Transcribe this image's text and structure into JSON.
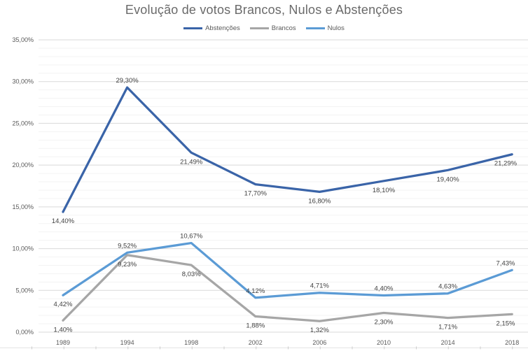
{
  "title": "Evolução de votos Brancos, Nulos e Abstenções",
  "legend": [
    {
      "label": "Abstenções",
      "color": "#3a64a8"
    },
    {
      "label": "Brancos",
      "color": "#a6a6a6"
    },
    {
      "label": "Nulos",
      "color": "#5b9bd5"
    }
  ],
  "colors": {
    "abstencoes": "#3a64a8",
    "brancos": "#a6a6a6",
    "nulos": "#5b9bd5",
    "major_gridline": "#d9d9d9",
    "minor_gridline": "#f3f3f3",
    "axis_text": "#595959",
    "data_label_text": "#404040",
    "title_text": "#6a6a6a"
  },
  "chart_data": {
    "type": "line",
    "title": "Evolução de votos Brancos, Nulos e Abstenções",
    "xlabel": "",
    "ylabel": "",
    "categories": [
      "1989",
      "1994",
      "1998",
      "2002",
      "2006",
      "2010",
      "2014",
      "2018"
    ],
    "series": [
      {
        "name": "Abstenções",
        "color": "#3a64a8",
        "values": [
          14.4,
          29.3,
          21.49,
          17.7,
          16.8,
          18.1,
          19.4,
          21.29
        ],
        "labels": [
          "14,40%",
          "29,30%",
          "21,49%",
          "17,70%",
          "16,80%",
          "18,10%",
          "19,40%",
          "21,29%"
        ],
        "label_positions": [
          "below",
          "above",
          "below",
          "below",
          "below",
          "below",
          "below",
          "below"
        ]
      },
      {
        "name": "Brancos",
        "color": "#a6a6a6",
        "values": [
          1.4,
          9.23,
          8.03,
          1.88,
          1.32,
          2.3,
          1.71,
          2.15
        ],
        "labels": [
          "1,40%",
          "9,23%",
          "8,03%",
          "1,88%",
          "1,32%",
          "2,30%",
          "1,71%",
          "2,15%"
        ],
        "label_positions": [
          "below",
          "below",
          "below",
          "below",
          "below",
          "below",
          "below",
          "below"
        ]
      },
      {
        "name": "Nulos",
        "color": "#5b9bd5",
        "values": [
          4.42,
          9.52,
          10.67,
          4.12,
          4.71,
          4.4,
          4.63,
          7.43
        ],
        "labels": [
          "4,42%",
          "9,52%",
          "10,67%",
          "4,12%",
          "4,71%",
          "4,40%",
          "4,63%",
          "7,43%"
        ],
        "label_positions": [
          "below",
          "above",
          "above",
          "above",
          "above",
          "above",
          "above",
          "above"
        ]
      }
    ],
    "ylim": [
      0,
      35
    ],
    "y_major_step": 5,
    "y_minor_step": 1,
    "y_tick_labels": [
      "0,00%",
      "5,00%",
      "10,00%",
      "15,00%",
      "20,00%",
      "25,00%",
      "30,00%",
      "35,00%"
    ],
    "grid": true,
    "legend_position": "top",
    "legend_order": [
      "Abstenções",
      "Brancos",
      "Nulos"
    ]
  }
}
